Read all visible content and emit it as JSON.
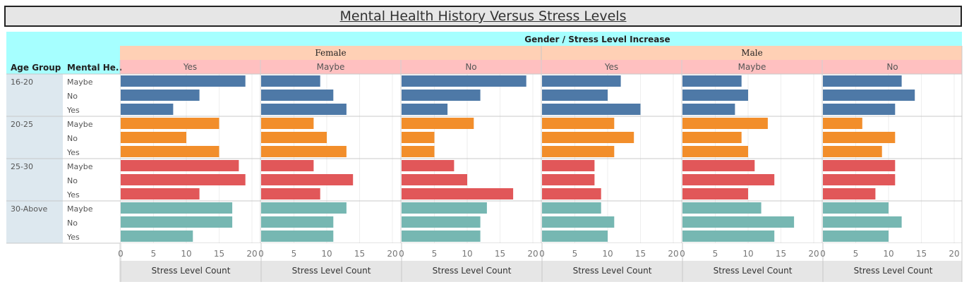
{
  "title": "Mental Health History Versus Stress Levels",
  "chart_data": {
    "type": "bar",
    "orientation": "horizontal",
    "title": "Mental Health History Versus Stress Levels",
    "column_header": "Gender  /  Stress Level Increase",
    "row_headers": [
      "Age Group",
      "Mental He.."
    ],
    "genders": [
      "Female",
      "Male"
    ],
    "stress_increase": [
      "Yes",
      "Maybe",
      "No"
    ],
    "age_groups": [
      "16-20",
      "20-25",
      "25-30",
      "30-Above"
    ],
    "mental_history": [
      "Maybe",
      "No",
      "Yes"
    ],
    "xlabel": "Stress Level Count",
    "xlim": [
      0,
      20
    ],
    "xticks": [
      "0",
      "5",
      "10",
      "15",
      "20"
    ],
    "colors": {
      "16-20": "#4e79a7",
      "20-25": "#f28e2b",
      "25-30": "#e15759",
      "30-Above": "#76b7b2"
    },
    "header_colors": {
      "top": "#a6ffff",
      "gender": "#ffd0b5",
      "stress": "#ffc0c0",
      "rowhead": "#dde8ef"
    },
    "values": {
      "Female": {
        "Yes": {
          "16-20": [
            19,
            12,
            8
          ],
          "20-25": [
            15,
            10,
            15
          ],
          "25-30": [
            18,
            19,
            12
          ],
          "30-Above": [
            17,
            17,
            11
          ]
        },
        "Maybe": {
          "16-20": [
            9,
            11,
            13
          ],
          "20-25": [
            8,
            10,
            13
          ],
          "25-30": [
            8,
            14,
            9
          ],
          "30-Above": [
            13,
            11,
            11
          ]
        },
        "No": {
          "16-20": [
            19,
            12,
            7
          ],
          "20-25": [
            11,
            5,
            5
          ],
          "25-30": [
            8,
            10,
            17
          ],
          "30-Above": [
            13,
            12,
            12
          ]
        }
      },
      "Male": {
        "Yes": {
          "16-20": [
            12,
            10,
            15
          ],
          "20-25": [
            11,
            14,
            11
          ],
          "25-30": [
            8,
            8,
            9
          ],
          "30-Above": [
            9,
            11,
            10
          ]
        },
        "Maybe": {
          "16-20": [
            9,
            10,
            8
          ],
          "20-25": [
            13,
            9,
            10
          ],
          "25-30": [
            11,
            14,
            10
          ],
          "30-Above": [
            12,
            17,
            14
          ]
        },
        "No": {
          "16-20": [
            12,
            14,
            11
          ],
          "20-25": [
            6,
            11,
            9
          ],
          "25-30": [
            11,
            11,
            8
          ],
          "30-Above": [
            10,
            12,
            10
          ]
        }
      }
    }
  }
}
